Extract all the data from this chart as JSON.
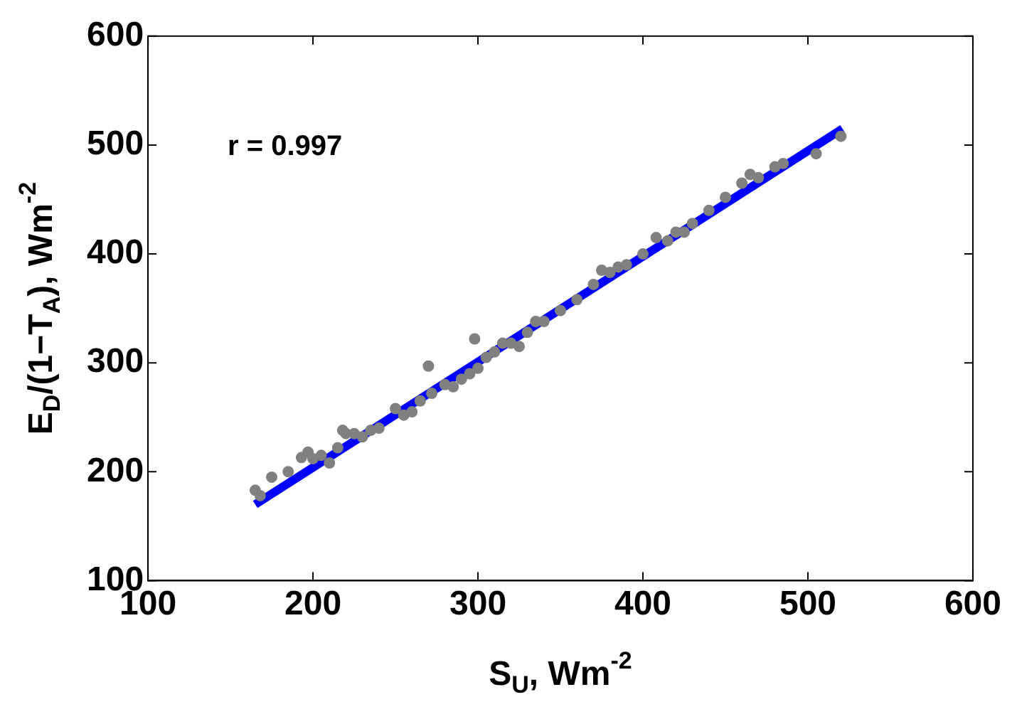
{
  "chart_data": {
    "type": "scatter",
    "xlabel": "S$_{U}$, Wm$^{-2}$",
    "ylabel": "E$_{D}$/(1−T$_{A}$), Wm$^{-2}$",
    "annotations": [
      "r = 0.997"
    ],
    "xlim": [
      100,
      600
    ],
    "xticks": [
      100,
      200,
      300,
      400,
      500,
      600
    ],
    "ylim": [
      100,
      600
    ],
    "yticks": [
      100,
      200,
      300,
      400,
      500,
      600
    ],
    "grid": false,
    "legend": false,
    "marker": "circle",
    "series": [
      {
        "color": "#808080",
        "x": [
          165,
          168,
          175,
          185,
          193,
          197,
          200,
          205,
          210,
          215,
          218,
          220,
          225,
          230,
          235,
          240,
          250,
          255,
          260,
          265,
          270,
          272,
          280,
          285,
          290,
          295,
          298,
          300,
          305,
          310,
          315,
          320,
          325,
          330,
          335,
          340,
          350,
          360,
          370,
          375,
          380,
          385,
          390,
          400,
          408,
          415,
          420,
          425,
          430,
          440,
          450,
          460,
          465,
          470,
          480,
          485,
          505,
          520
        ],
        "values": [
          183,
          178,
          195,
          200,
          213,
          218,
          212,
          215,
          208,
          222,
          238,
          235,
          235,
          232,
          238,
          240,
          258,
          252,
          255,
          265,
          297,
          272,
          280,
          278,
          285,
          290,
          322,
          295,
          305,
          310,
          318,
          318,
          315,
          328,
          338,
          338,
          348,
          358,
          372,
          385,
          383,
          388,
          390,
          400,
          415,
          412,
          420,
          420,
          428,
          440,
          452,
          465,
          473,
          470,
          480,
          483,
          492,
          508
        ]
      },
      {
        "type": "line",
        "color": "#0000ff",
        "x": [
          165,
          521
        ],
        "values": [
          170,
          515
        ],
        "marker": "none"
      }
    ]
  }
}
